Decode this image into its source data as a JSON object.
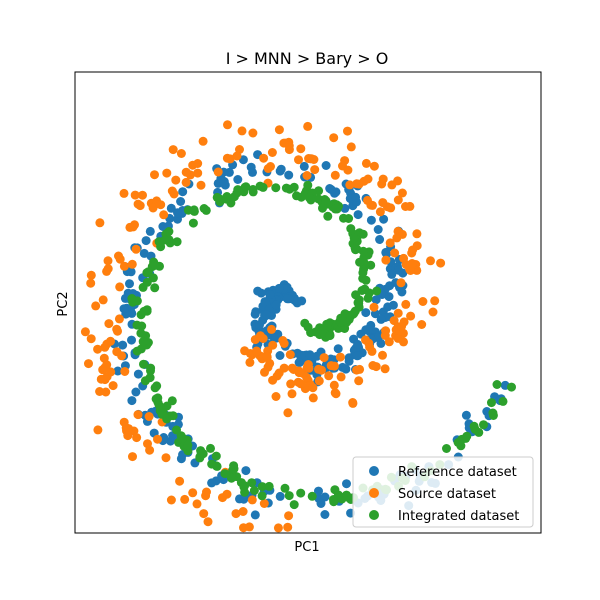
{
  "chart_data": {
    "type": "scatter",
    "title": "I > MNN > Bary > O",
    "xlabel": "PC1",
    "ylabel": "PC2",
    "ticks": "none",
    "legend_position": "bottom-right",
    "xlim": [
      -1.2,
      1.2
    ],
    "ylim": [
      -1.2,
      1.2
    ],
    "series": [
      {
        "name": "Reference dataset",
        "color": "#1f77b4",
        "segments": [
          {
            "t0": 0.0,
            "t1": 0.2,
            "r0": 0.02,
            "r1": 0.08,
            "a0": 0.0,
            "a1": 1.0,
            "n": 30,
            "noise": 0.04
          },
          {
            "t0": 0.2,
            "t1": 1.0,
            "r0": 0.08,
            "r1": 1.05,
            "a0": 1.0,
            "a1": 10.3,
            "n": 330,
            "noise": 0.035
          }
        ]
      },
      {
        "name": "Source dataset",
        "color": "#ff7f0e",
        "segments": [
          {
            "t0": 0.15,
            "t1": 1.0,
            "r0": 0.25,
            "r1": 1.05,
            "a0": 2.0,
            "a1": 9.1,
            "n": 280,
            "noise": 0.06
          }
        ]
      },
      {
        "name": "Integrated dataset",
        "color": "#2ca02c",
        "segments": [
          {
            "t0": 0.3,
            "t1": 1.0,
            "r0": 0.15,
            "r1": 1.05,
            "a0": 3.2,
            "a1": 10.3,
            "n": 260,
            "noise": 0.02
          }
        ]
      }
    ]
  }
}
